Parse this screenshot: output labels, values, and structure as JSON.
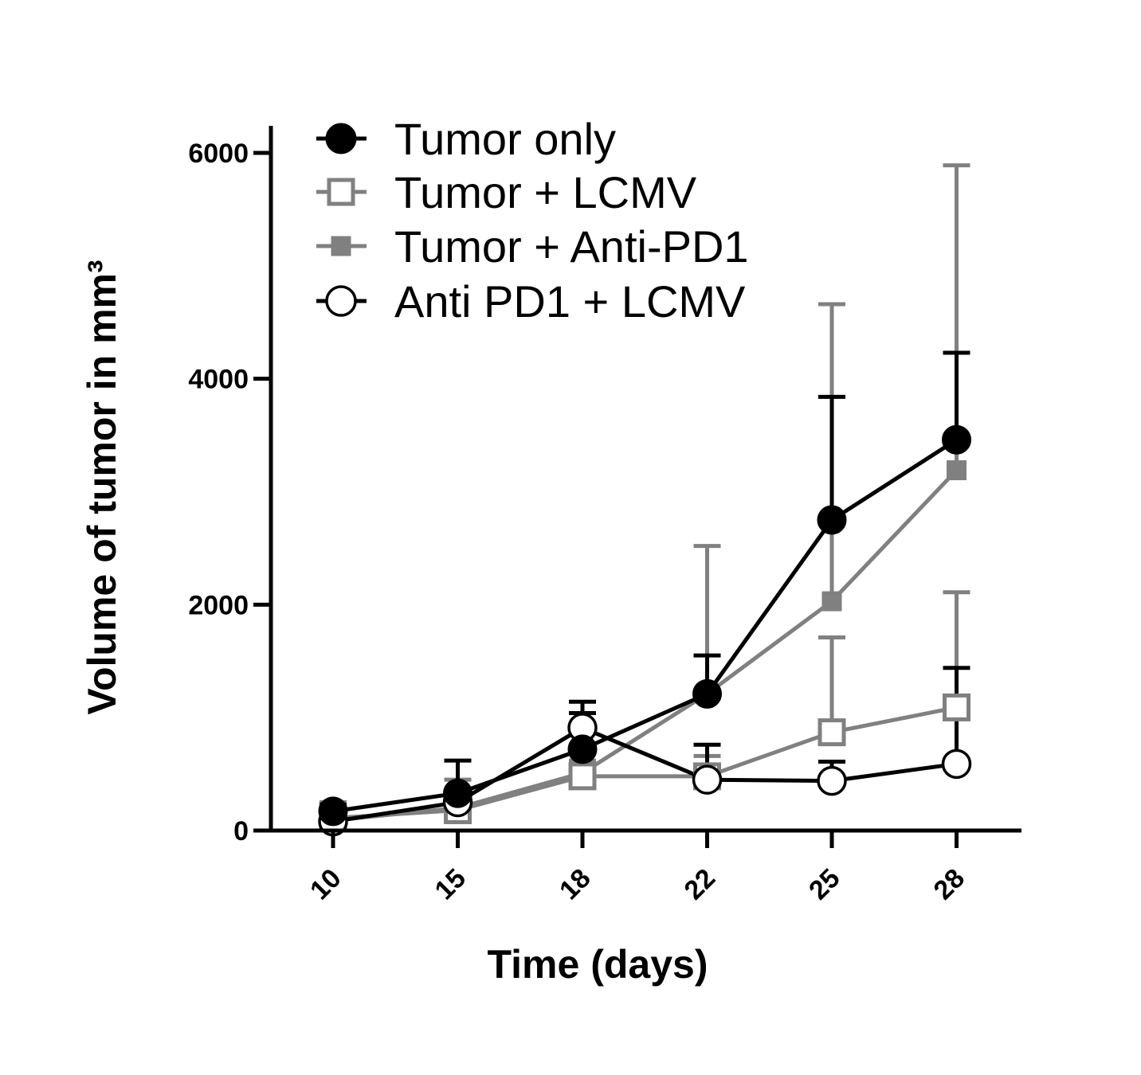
{
  "chart_data": {
    "type": "line",
    "title": "",
    "xlabel": "Time (days)",
    "ylabel": "Volume of tumor in mm³",
    "x": [
      10,
      15,
      18,
      22,
      25,
      28
    ],
    "x_tick_labels": [
      "10",
      "15",
      "18",
      "22",
      "25",
      "28"
    ],
    "ylim": [
      0,
      6200
    ],
    "y_ticks": [
      0,
      2000,
      4000,
      6000
    ],
    "y_tick_labels": [
      "0",
      "2000",
      "4000",
      "6000"
    ],
    "legend_position": "top-left",
    "grid": false,
    "series": [
      {
        "name": "Tumor only",
        "color": "#000000",
        "marker": "filled-circle",
        "values": [
          170,
          330,
          720,
          1210,
          2750,
          3460
        ],
        "error_plus": [
          60,
          290,
          420,
          340,
          1090,
          770
        ]
      },
      {
        "name": "Tumor + LCMV",
        "color": "#808080",
        "marker": "open-square",
        "values": [
          110,
          180,
          480,
          480,
          870,
          1090
        ],
        "error_plus": [
          140,
          160,
          140,
          180,
          840,
          1020
        ]
      },
      {
        "name": "Tumor + Anti-PD1",
        "color": "#808080",
        "marker": "filled-square",
        "values": [
          90,
          200,
          510,
          1210,
          2030,
          3190
        ],
        "error_plus": [
          130,
          250,
          390,
          1310,
          2630,
          2700
        ]
      },
      {
        "name": "Anti PD1 + LCMV",
        "color": "#000000",
        "marker": "open-circle",
        "values": [
          80,
          250,
          910,
          450,
          440,
          590
        ],
        "error_plus": [
          40,
          50,
          130,
          310,
          170,
          850
        ]
      }
    ]
  }
}
